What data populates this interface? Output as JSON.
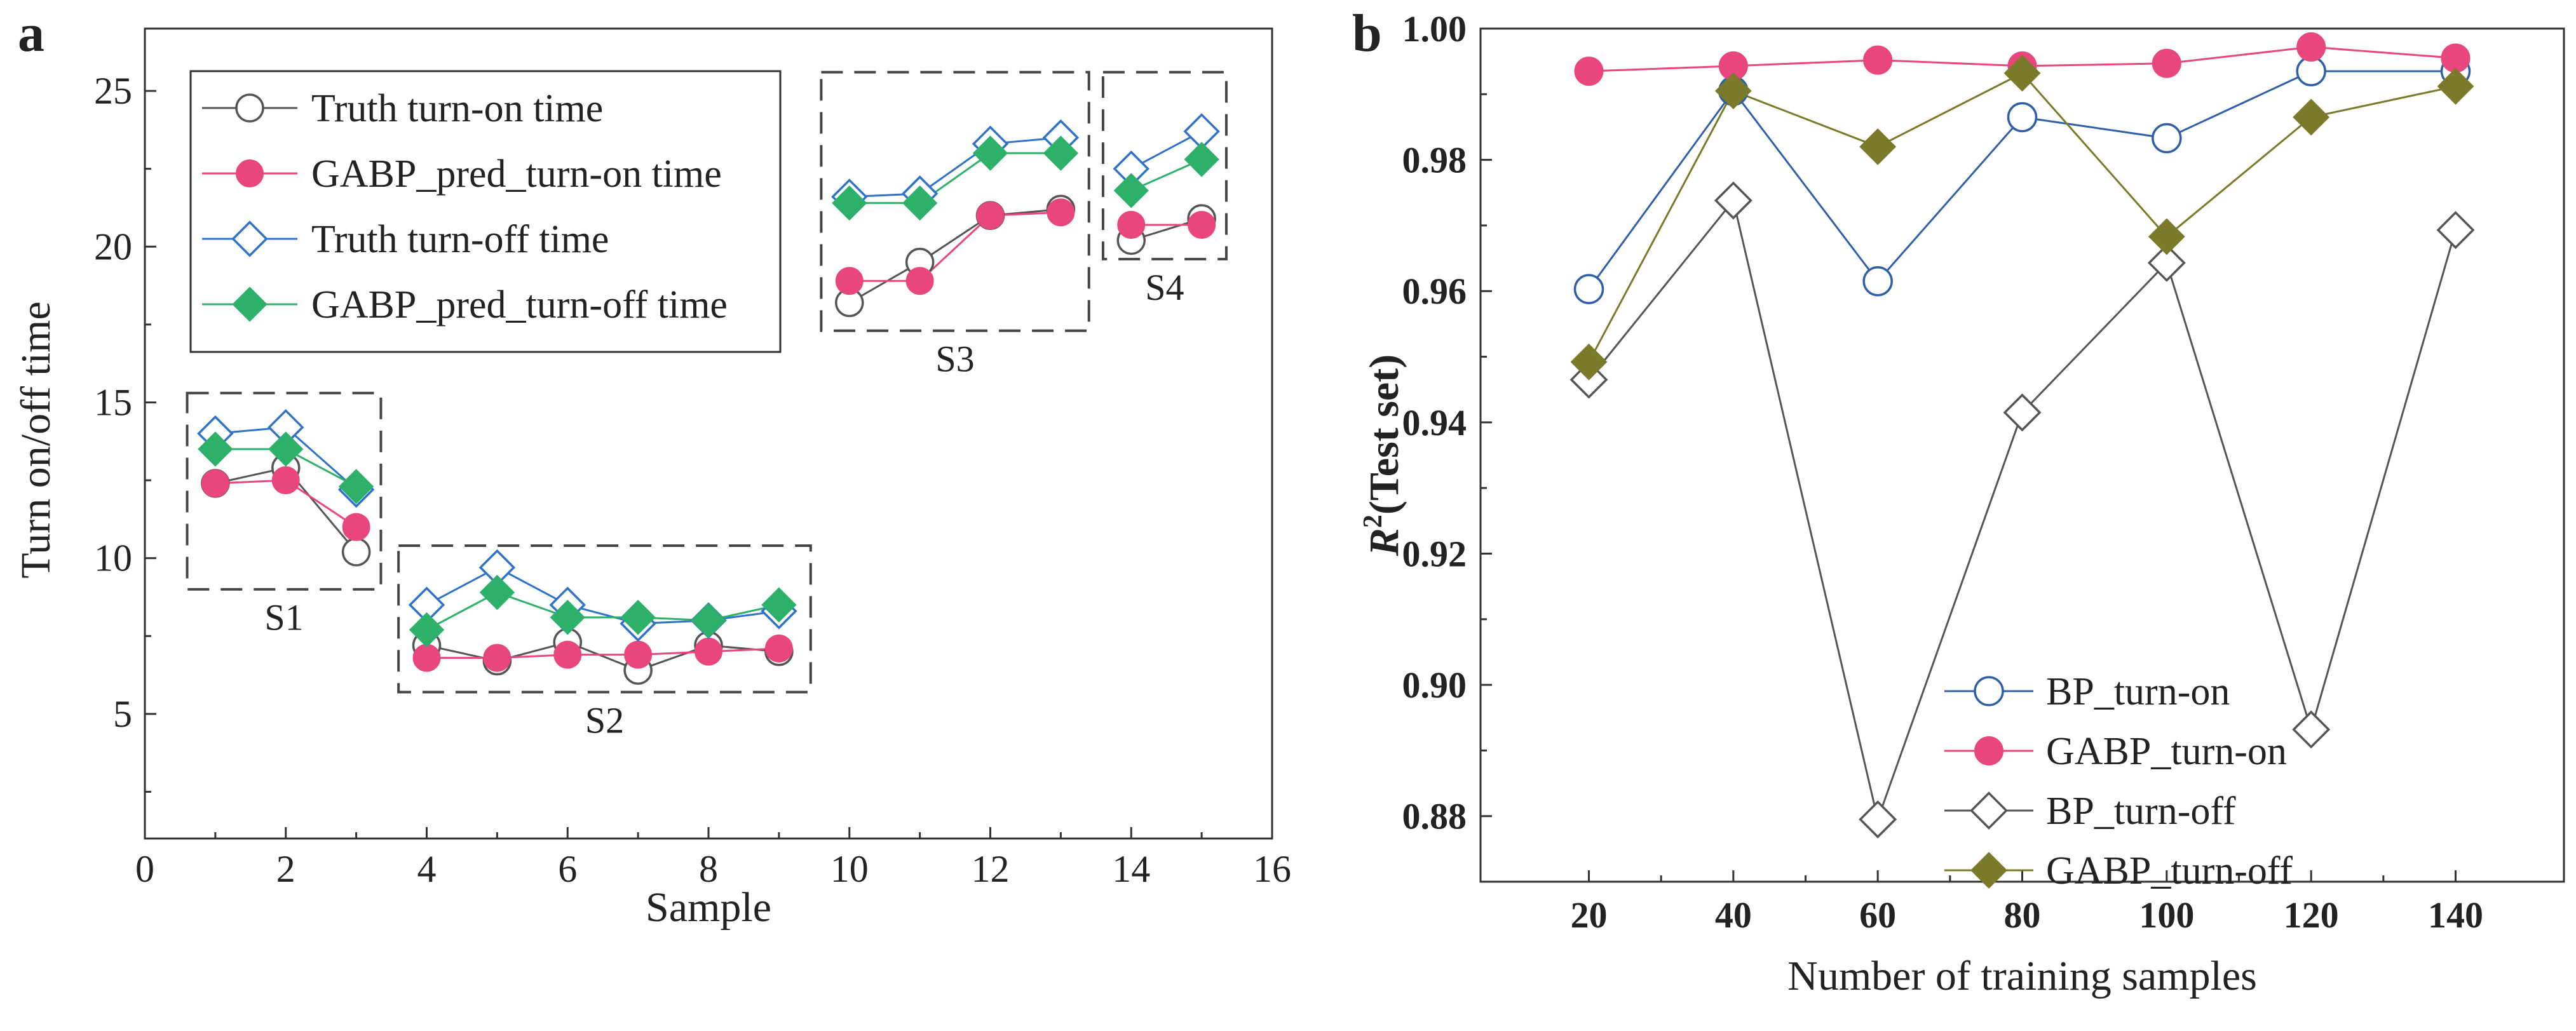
{
  "chart_data": [
    {
      "panel": "a",
      "type": "line",
      "xlabel": "Sample",
      "ylabel": "Turn on/off time",
      "xlim": [
        0,
        16
      ],
      "ylim": [
        1,
        27
      ],
      "xticks": [
        0,
        2,
        4,
        6,
        8,
        10,
        12,
        14,
        16
      ],
      "yticks": [
        5,
        10,
        15,
        20,
        25
      ],
      "legend_position": "top-left",
      "series": [
        {
          "name": "Truth turn-on time",
          "color": "#555555",
          "marker": "circle-open",
          "segments": [
            {
              "x": [
                1,
                2,
                3
              ],
              "y": [
                12.4,
                12.9,
                10.2
              ]
            },
            {
              "x": [
                4,
                5,
                6,
                7,
                8,
                9
              ],
              "y": [
                7.2,
                6.7,
                7.3,
                6.4,
                7.2,
                7.0
              ]
            },
            {
              "x": [
                10,
                11,
                12,
                13
              ],
              "y": [
                18.2,
                19.5,
                21.0,
                21.2
              ]
            },
            {
              "x": [
                14,
                15
              ],
              "y": [
                20.2,
                20.9
              ]
            }
          ]
        },
        {
          "name": "GABP_pred_turn-on time",
          "color": "#e8467c",
          "marker": "circle-filled",
          "segments": [
            {
              "x": [
                1,
                2,
                3
              ],
              "y": [
                12.4,
                12.5,
                11.0
              ]
            },
            {
              "x": [
                4,
                5,
                6,
                7,
                8,
                9
              ],
              "y": [
                6.8,
                6.8,
                6.9,
                6.9,
                7.0,
                7.1
              ]
            },
            {
              "x": [
                10,
                11,
                12,
                13
              ],
              "y": [
                18.9,
                18.9,
                21.0,
                21.1
              ]
            },
            {
              "x": [
                14,
                15
              ],
              "y": [
                20.7,
                20.7
              ]
            }
          ]
        },
        {
          "name": "Truth turn-off time",
          "color": "#2f72c9",
          "marker": "diamond-open",
          "segments": [
            {
              "x": [
                1,
                2,
                3
              ],
              "y": [
                14.0,
                14.2,
                12.2
              ]
            },
            {
              "x": [
                4,
                5,
                6,
                7,
                8,
                9
              ],
              "y": [
                8.5,
                9.7,
                8.5,
                7.9,
                8.0,
                8.3
              ]
            },
            {
              "x": [
                10,
                11,
                12,
                13
              ],
              "y": [
                21.6,
                21.7,
                23.3,
                23.5
              ]
            },
            {
              "x": [
                14,
                15
              ],
              "y": [
                22.5,
                23.7
              ]
            }
          ]
        },
        {
          "name": "GABP_pred_turn-off time",
          "color": "#2db06a",
          "marker": "diamond-filled",
          "segments": [
            {
              "x": [
                1,
                2,
                3
              ],
              "y": [
                13.5,
                13.5,
                12.3
              ]
            },
            {
              "x": [
                4,
                5,
                6,
                7,
                8,
                9
              ],
              "y": [
                7.7,
                8.9,
                8.1,
                8.1,
                8.0,
                8.5
              ]
            },
            {
              "x": [
                10,
                11,
                12,
                13
              ],
              "y": [
                21.4,
                21.4,
                23.0,
                23.0
              ]
            },
            {
              "x": [
                14,
                15
              ],
              "y": [
                21.8,
                22.8
              ]
            }
          ]
        }
      ],
      "groups": [
        {
          "label": "S1",
          "x_range": [
            0.6,
            3.35
          ],
          "y_range": [
            9.0,
            15.3
          ],
          "label_anchor": "below-center"
        },
        {
          "label": "S2",
          "x_range": [
            3.6,
            9.45
          ],
          "y_range": [
            5.7,
            10.4
          ],
          "label_anchor": "below-center"
        },
        {
          "label": "S3",
          "x_range": [
            9.6,
            13.4
          ],
          "y_range": [
            17.3,
            25.6
          ],
          "label_anchor": "below-center"
        },
        {
          "label": "S4",
          "x_range": [
            13.6,
            15.35
          ],
          "y_range": [
            19.6,
            25.6
          ],
          "label_anchor": "below-center"
        }
      ]
    },
    {
      "panel": "b",
      "type": "line",
      "xlabel": "Number of training samples",
      "ylabel_prefix": "R",
      "ylabel_superscript": "2",
      "ylabel_suffix": "(Test set)",
      "categories": [
        "20",
        "40",
        "60",
        "80",
        "100",
        "120",
        "140"
      ],
      "ylim": [
        0.87,
        1.0
      ],
      "yticks": [
        "0.88",
        "0.90",
        "0.92",
        "0.94",
        "0.96",
        "0.98",
        "1.00"
      ],
      "legend_position": "bottom-center",
      "series": [
        {
          "name": "BP_turn-on",
          "color": "#2f5fa8",
          "marker": "circle-open",
          "values": [
            0.9603,
            0.9905,
            0.9615,
            0.9865,
            0.9833,
            0.9935,
            0.9935
          ]
        },
        {
          "name": "GABP_turn-on",
          "color": "#e8467c",
          "marker": "circle-filled",
          "values": [
            0.9935,
            0.9943,
            0.9952,
            0.9943,
            0.9947,
            0.9972,
            0.9955
          ]
        },
        {
          "name": "BP_turn-off",
          "color": "#555555",
          "marker": "diamond-open",
          "values": [
            0.9465,
            0.9738,
            0.8795,
            0.9415,
            0.9643,
            0.8932,
            0.9693
          ]
        },
        {
          "name": "GABP_turn-off",
          "color": "#7a7a2a",
          "marker": "diamond-filled",
          "values": [
            0.9492,
            0.9905,
            0.982,
            0.9932,
            0.9683,
            0.9865,
            0.9912
          ]
        }
      ]
    }
  ]
}
